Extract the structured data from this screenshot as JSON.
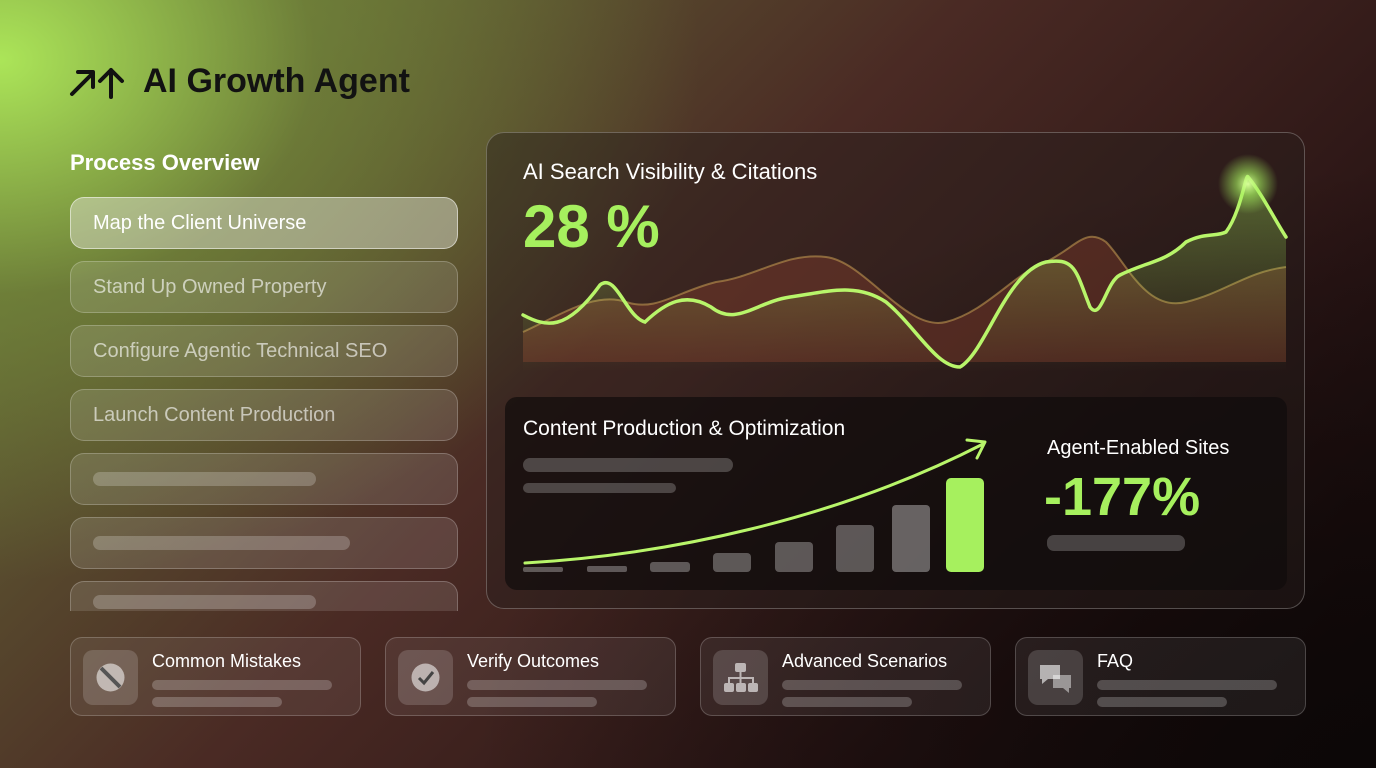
{
  "header": {
    "title": "AI Growth Agent"
  },
  "sidebar": {
    "heading": "Process Overview",
    "steps": [
      "Map the Client Universe",
      "Stand Up Owned Property",
      "Configure Agentic Technical SEO",
      "Launch Content Production"
    ]
  },
  "visibility": {
    "title": "AI Search Visibility & Citations",
    "value": "28 %"
  },
  "content": {
    "title": "Content Production & Optimization"
  },
  "sites": {
    "label": "Agent-Enabled Sites",
    "value": "-177%"
  },
  "cards": [
    "Common Mistakes",
    "Verify Outcomes",
    "Advanced Scenarios",
    "FAQ"
  ]
}
